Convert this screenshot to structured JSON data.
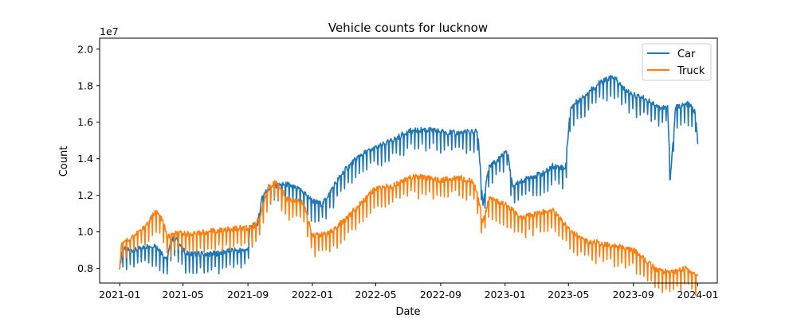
{
  "chart_data": {
    "type": "line",
    "title": "Vehicle counts for lucknow",
    "xlabel": "Date",
    "ylabel": "Count",
    "y_offset_text": "1e7",
    "y_multiplier": 10000000,
    "xlim": [
      "2020-11-24",
      "2024-02-07"
    ],
    "ylim": [
      0.72,
      2.06
    ],
    "x_ticks": [
      "2021-01",
      "2021-05",
      "2021-09",
      "2022-01",
      "2022-05",
      "2022-09",
      "2023-01",
      "2023-05",
      "2023-09",
      "2024-01"
    ],
    "y_ticks": [
      "0.8",
      "1.0",
      "1.2",
      "1.4",
      "1.6",
      "1.8",
      "2.0"
    ],
    "grid": false,
    "legend_position": "top-right",
    "series": [
      {
        "name": "Car",
        "color": "#1f77b4",
        "data": [
          [
            "2021-01-01",
            0.81
          ],
          [
            "2021-01-07",
            0.91
          ],
          [
            "2021-01-15",
            0.9
          ],
          [
            "2021-02-01",
            0.9
          ],
          [
            "2021-02-20",
            0.92
          ],
          [
            "2021-03-10",
            0.93
          ],
          [
            "2021-03-31",
            0.85
          ],
          [
            "2021-04-10",
            0.96
          ],
          [
            "2021-04-20",
            0.96
          ],
          [
            "2021-05-01",
            0.9
          ],
          [
            "2021-05-10",
            0.88
          ],
          [
            "2021-06-01",
            0.88
          ],
          [
            "2021-07-01",
            0.88
          ],
          [
            "2021-08-01",
            0.9
          ],
          [
            "2021-08-31",
            0.9
          ],
          [
            "2021-09-05",
            1.02
          ],
          [
            "2021-09-20",
            1.05
          ],
          [
            "2021-09-28",
            1.2
          ],
          [
            "2021-10-15",
            1.25
          ],
          [
            "2021-11-15",
            1.26
          ],
          [
            "2021-12-15",
            1.22
          ],
          [
            "2022-01-01",
            1.17
          ],
          [
            "2022-01-20",
            1.15
          ],
          [
            "2022-02-10",
            1.25
          ],
          [
            "2022-03-01",
            1.33
          ],
          [
            "2022-04-01",
            1.42
          ],
          [
            "2022-05-01",
            1.46
          ],
          [
            "2022-06-01",
            1.5
          ],
          [
            "2022-07-01",
            1.55
          ],
          [
            "2022-08-01",
            1.56
          ],
          [
            "2022-09-01",
            1.55
          ],
          [
            "2022-10-01",
            1.54
          ],
          [
            "2022-11-01",
            1.55
          ],
          [
            "2022-11-10",
            1.55
          ],
          [
            "2022-11-20",
            1.15
          ],
          [
            "2022-12-01",
            1.35
          ],
          [
            "2022-12-20",
            1.4
          ],
          [
            "2023-01-05",
            1.45
          ],
          [
            "2023-01-15",
            1.25
          ],
          [
            "2023-02-15",
            1.3
          ],
          [
            "2023-03-15",
            1.32
          ],
          [
            "2023-04-01",
            1.36
          ],
          [
            "2023-04-25",
            1.35
          ],
          [
            "2023-05-05",
            1.68
          ],
          [
            "2023-06-01",
            1.75
          ],
          [
            "2023-07-01",
            1.82
          ],
          [
            "2023-07-25",
            1.85
          ],
          [
            "2023-08-15",
            1.78
          ],
          [
            "2023-09-01",
            1.75
          ],
          [
            "2023-10-01",
            1.72
          ],
          [
            "2023-10-20",
            1.68
          ],
          [
            "2023-11-05",
            1.68
          ],
          [
            "2023-11-10",
            1.3
          ],
          [
            "2023-11-20",
            1.68
          ],
          [
            "2023-12-15",
            1.7
          ],
          [
            "2023-12-28",
            1.65
          ],
          [
            "2024-01-01",
            1.48
          ]
        ]
      },
      {
        "name": "Truck",
        "color": "#ff7f0e",
        "data": [
          [
            "2021-01-01",
            0.8
          ],
          [
            "2021-01-05",
            0.95
          ],
          [
            "2021-01-20",
            0.96
          ],
          [
            "2021-02-15",
            1.02
          ],
          [
            "2021-03-01",
            1.07
          ],
          [
            "2021-03-10",
            1.12
          ],
          [
            "2021-03-25",
            1.05
          ],
          [
            "2021-04-01",
            0.97
          ],
          [
            "2021-04-15",
            0.99
          ],
          [
            "2021-05-15",
            0.99
          ],
          [
            "2021-06-15",
            1.0
          ],
          [
            "2021-07-15",
            1.01
          ],
          [
            "2021-08-15",
            1.02
          ],
          [
            "2021-09-01",
            1.02
          ],
          [
            "2021-09-15",
            1.04
          ],
          [
            "2021-09-25",
            1.1
          ],
          [
            "2021-10-10",
            1.25
          ],
          [
            "2021-10-25",
            1.27
          ],
          [
            "2021-11-15",
            1.18
          ],
          [
            "2021-12-15",
            1.16
          ],
          [
            "2022-01-01",
            0.98
          ],
          [
            "2022-02-01",
            0.99
          ],
          [
            "2022-03-01",
            1.06
          ],
          [
            "2022-04-01",
            1.15
          ],
          [
            "2022-05-01",
            1.24
          ],
          [
            "2022-06-01",
            1.25
          ],
          [
            "2022-07-01",
            1.3
          ],
          [
            "2022-08-01",
            1.3
          ],
          [
            "2022-09-01",
            1.28
          ],
          [
            "2022-10-01",
            1.3
          ],
          [
            "2022-11-01",
            1.28
          ],
          [
            "2022-11-10",
            1.2
          ],
          [
            "2022-11-20",
            1.05
          ],
          [
            "2022-12-01",
            1.18
          ],
          [
            "2023-01-01",
            1.15
          ],
          [
            "2023-02-01",
            1.08
          ],
          [
            "2023-03-01",
            1.1
          ],
          [
            "2023-04-01",
            1.12
          ],
          [
            "2023-05-01",
            1.02
          ],
          [
            "2023-06-01",
            0.95
          ],
          [
            "2023-07-01",
            0.94
          ],
          [
            "2023-08-01",
            0.92
          ],
          [
            "2023-09-01",
            0.9
          ],
          [
            "2023-09-20",
            0.86
          ],
          [
            "2023-10-15",
            0.79
          ],
          [
            "2023-11-15",
            0.78
          ],
          [
            "2023-12-10",
            0.8
          ],
          [
            "2024-01-01",
            0.76
          ]
        ]
      }
    ]
  }
}
